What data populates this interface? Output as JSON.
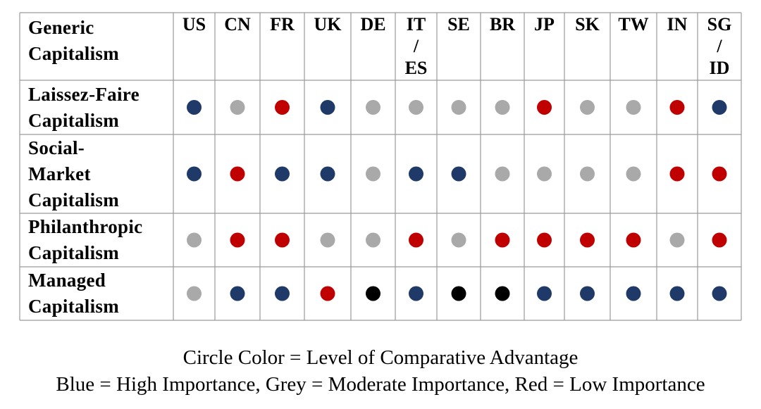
{
  "chart_data": {
    "type": "table",
    "corner_label": "Generic\nCapitalism",
    "columns": [
      "US",
      "CN",
      "FR",
      "UK",
      "DE",
      "IT\n/\nES",
      "SE",
      "BR",
      "JP",
      "SK",
      "TW",
      "IN",
      "SG\n/\nID"
    ],
    "rows": [
      {
        "label": "Laissez-Faire\nCapitalism",
        "values": [
          "blue",
          "grey",
          "red",
          "blue",
          "grey",
          "grey",
          "grey",
          "grey",
          "red",
          "grey",
          "grey",
          "red",
          "blue"
        ]
      },
      {
        "label": "Social-\nMarket\nCapitalism",
        "values": [
          "blue",
          "red",
          "blue",
          "blue",
          "grey",
          "blue",
          "blue",
          "grey",
          "grey",
          "grey",
          "grey",
          "red",
          "red"
        ]
      },
      {
        "label": "Philanthropic\nCapitalism",
        "values": [
          "grey",
          "red",
          "red",
          "grey",
          "grey",
          "red",
          "grey",
          "red",
          "red",
          "red",
          "red",
          "grey",
          "red"
        ]
      },
      {
        "label": "Managed\nCapitalism",
        "values": [
          "grey",
          "blue",
          "blue",
          "red",
          "black",
          "blue",
          "black",
          "black",
          "blue",
          "blue",
          "blue",
          "blue",
          "blue"
        ]
      }
    ],
    "colors": {
      "blue": "#1f3a68",
      "grey": "#a9a9a9",
      "red": "#c00000",
      "black": "#000000"
    }
  },
  "caption": {
    "line1": "Circle Color = Level of Comparative Advantage",
    "line2": "Blue = High Importance, Grey = Moderate Importance, Red = Low Importance"
  }
}
